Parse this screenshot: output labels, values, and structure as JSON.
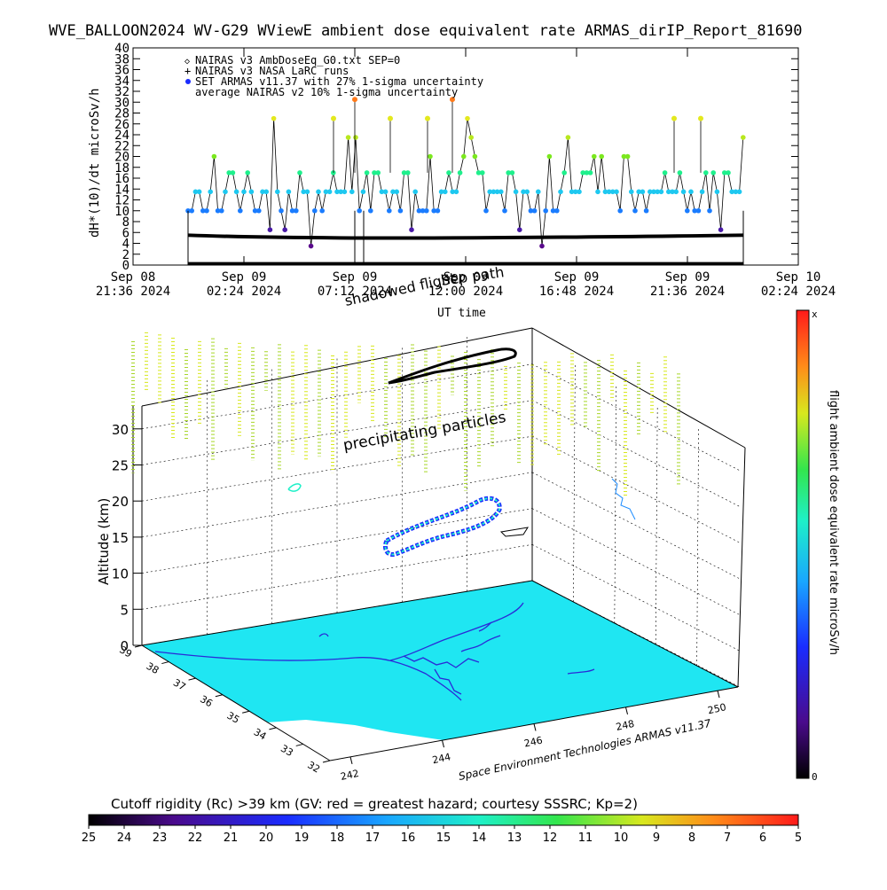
{
  "header": {
    "title": "WVE_BALLOON2024 WV-G29 WViewE ambient dose equivalent rate ARMAS_dirIP_Report_81690"
  },
  "chart_data": [
    {
      "type": "scatter",
      "ylabel": "dH*(10)/dt microSv/h",
      "xlabel": "UT time",
      "ylim": [
        0,
        40
      ],
      "y_ticks": [
        "0",
        "2",
        "4",
        "6",
        "8",
        "10",
        "12",
        "14",
        "16",
        "18",
        "20",
        "22",
        "24",
        "26",
        "28",
        "30",
        "32",
        "34",
        "36",
        "38",
        "40"
      ],
      "x_ticks": [
        {
          "day": "Sep 08",
          "time": "21:36 2024"
        },
        {
          "day": "Sep 09",
          "time": "02:24 2024"
        },
        {
          "day": "Sep 09",
          "time": "07:12 2024"
        },
        {
          "day": "Sep 09",
          "time": "12:00 2024"
        },
        {
          "day": "Sep 09",
          "time": "16:48 2024"
        },
        {
          "day": "Sep 09",
          "time": "21:36 2024"
        },
        {
          "day": "Sep 10",
          "time": "02:24 2024"
        }
      ],
      "legend": [
        {
          "symbol": "◇",
          "label": "NAIRAS v3 AmbDoseEq_G0.txt SEP=0"
        },
        {
          "symbol": "+",
          "label": "NAIRAS v3 NASA LaRC runs"
        },
        {
          "symbol": "●",
          "label": "SET ARMAS v11.37 with 27% 1-sigma uncertainty"
        },
        {
          "symbol": "",
          "label": "average NAIRAS v2 10% 1-sigma uncertainty"
        }
      ],
      "overlay_labels": [
        "Sep path",
        "shadowed flight"
      ],
      "series": [
        {
          "name": "SET ARMAS v11.37 with 27% 1-sigma uncertainty",
          "levels": [
            3.5,
            6.5,
            10,
            13.5,
            17,
            20,
            23.5,
            27,
            30.5
          ]
        },
        {
          "name": "NAIRAS v3 NASA LaRC runs",
          "baseline": 5.5
        }
      ]
    },
    {
      "type": "scatter",
      "zlabel": "Altitude (km)",
      "z_ticks": [
        "0",
        "5",
        "10",
        "15",
        "20",
        "25",
        "30"
      ],
      "lat_ticks": [
        "32",
        "33",
        "34",
        "35",
        "36",
        "37",
        "38",
        "39"
      ],
      "lon_ticks": [
        "242",
        "244",
        "246",
        "248",
        "250"
      ],
      "annotation": "precipitating particles",
      "credit": "Space Environment Technologies ARMAS v11.37"
    }
  ],
  "colorbar_right": {
    "label": "flight ambient dose equivalent rate microSv/h",
    "top": "x",
    "bottom": "0"
  },
  "colorbar_bottom": {
    "title": "Cutoff rigidity (Rc) >39 km (GV: red = greatest hazard; courtesy SSSRC; Kp=2)",
    "ticks": [
      "25",
      "24",
      "23",
      "22",
      "21",
      "20",
      "19",
      "18",
      "17",
      "16",
      "15",
      "14",
      "13",
      "12",
      "11",
      "10",
      "9",
      "8",
      "7",
      "6",
      "5"
    ]
  },
  "colors": {
    "cutoff_surface": "#1fe6f2",
    "contour": "#2a2ad8",
    "curtain": "#a9d62a"
  }
}
